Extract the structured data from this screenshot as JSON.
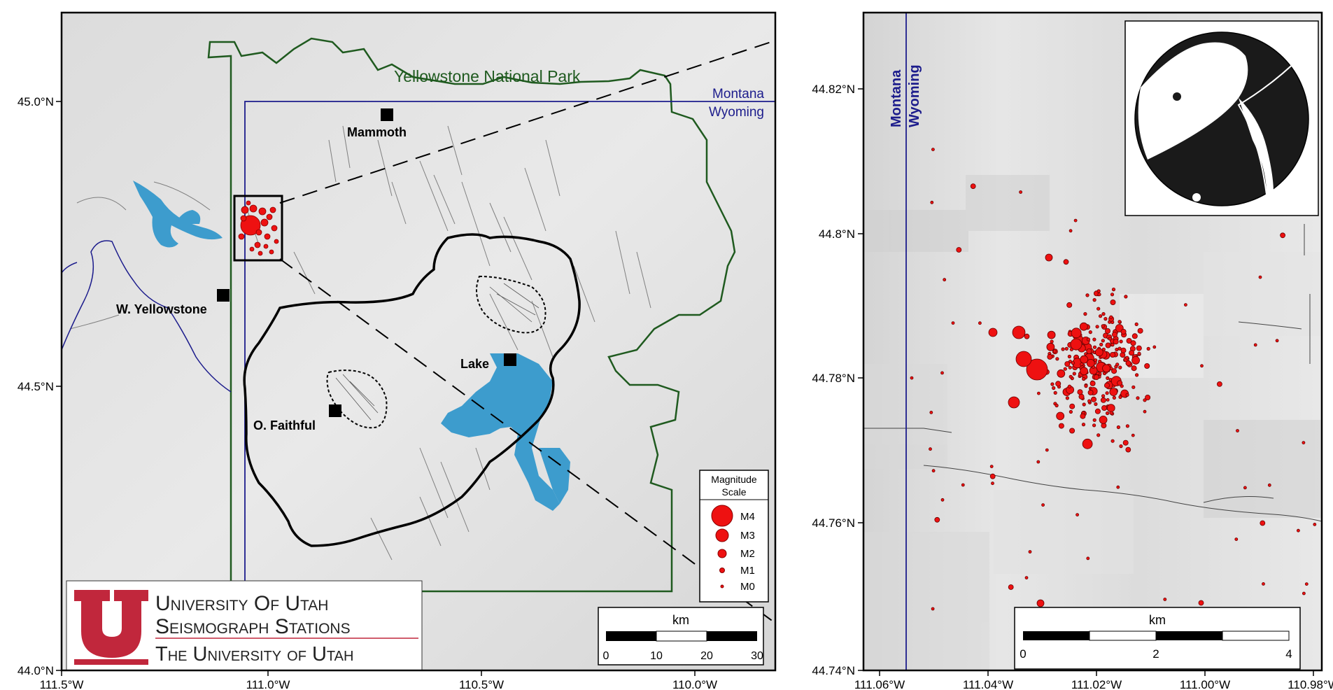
{
  "left_map": {
    "park_label": "Yellowstone National Park",
    "state_labels": [
      "Montana",
      "Wyoming"
    ],
    "places": [
      "Mammoth",
      "W. Yellowstone",
      "Lake",
      "O. Faithful"
    ],
    "lat_ticks": [
      "45.0°N",
      "44.5°N",
      "44.0°N"
    ],
    "lon_ticks": [
      "111.5°W",
      "111.0°W",
      "110.5°W",
      "110.0°W"
    ],
    "scalebar": {
      "unit": "km",
      "ticks": [
        "0",
        "10",
        "20",
        "30"
      ]
    },
    "legend": {
      "title_line1": "Magnitude",
      "title_line2": "Scale",
      "items": [
        "M4",
        "M3",
        "M2",
        "M1",
        "M0"
      ]
    },
    "logo": {
      "line1": "University Of Utah",
      "line2": "Seismograph Stations",
      "line3": "The University of Utah"
    }
  },
  "right_map": {
    "state_labels": [
      "Montana",
      "Wyoming"
    ],
    "lat_ticks": [
      "44.82°N",
      "44.8°N",
      "44.78°N",
      "44.76°N",
      "44.74°N"
    ],
    "lon_ticks": [
      "111.06°W",
      "111.04°W",
      "111.02°W",
      "111.00°W",
      "110.98°W"
    ],
    "scalebar": {
      "unit": "km",
      "ticks": [
        "0",
        "2",
        "4"
      ]
    }
  },
  "colors": {
    "park_boundary": "#1f5a1f",
    "state_line": "#1c1c8c",
    "water": "#3d9ccd",
    "quake": "#ee1111",
    "caldera": "#000000",
    "logo_red": "#c1273c"
  }
}
